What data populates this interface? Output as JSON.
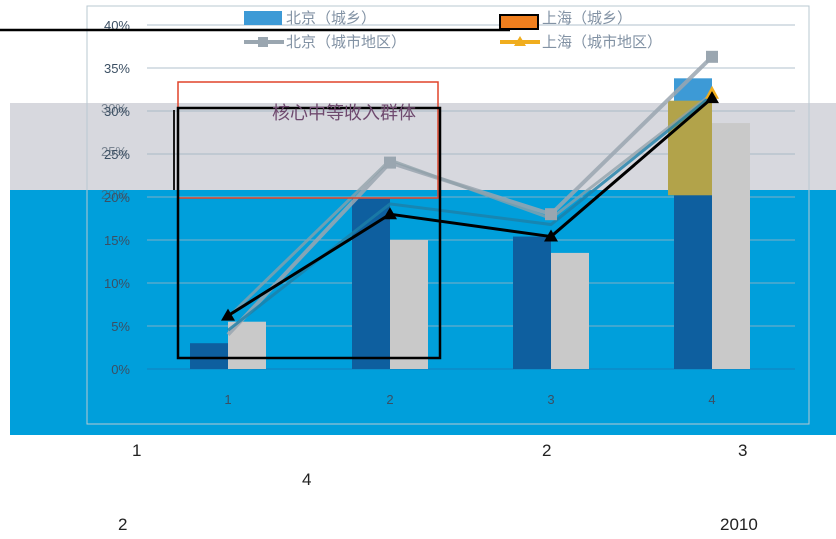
{
  "chart_data": {
    "type": "bar",
    "title": "",
    "xlabel": "",
    "ylabel": "",
    "categories": [
      "1",
      "2",
      "3",
      "4"
    ],
    "ylim": [
      0,
      40
    ],
    "y_ticks": [
      "0%",
      "5%",
      "10%",
      "15%",
      "20%",
      "25%",
      "30%",
      "35%",
      "40%"
    ],
    "overlay_ticks": [
      "20%",
      "25%",
      "30%"
    ],
    "series": [
      {
        "name": "北京（城乡）",
        "kind": "bar",
        "color": "#2e75b6",
        "values": [
          3.0,
          19.8,
          15.4,
          33.8
        ]
      },
      {
        "name": "上海（城乡）",
        "kind": "bar",
        "color": "#c9c9c9",
        "values": [
          5.5,
          15.0,
          13.5,
          28.6
        ]
      },
      {
        "name": "北京（城市地区）",
        "kind": "line",
        "color": "#9aa6b0",
        "values": [
          4.0,
          24.0,
          18.0,
          36.3
        ]
      },
      {
        "name": "上海（城市地区）",
        "kind": "line",
        "color": "#f0ad1e",
        "values": [
          6.0,
          24.3,
          17.5,
          32.0
        ]
      }
    ],
    "black_line": {
      "values": [
        6.2,
        18.0,
        15.4,
        31.5
      ]
    },
    "annotation": "核心中等收入群体",
    "legend_position": "top"
  },
  "page_notes": {
    "a": "1",
    "b": "2",
    "c": "3",
    "d": "4",
    "e": "2",
    "f": "2010"
  },
  "colors": {
    "band_blue": "#009fdb",
    "band_gray": "#d7d8de",
    "dark_bar": "#0e5f9f",
    "light_bar_top": "#3d9ad6",
    "olive": "#b2a34a",
    "red_box": "#e0442a",
    "black": "#000000"
  }
}
